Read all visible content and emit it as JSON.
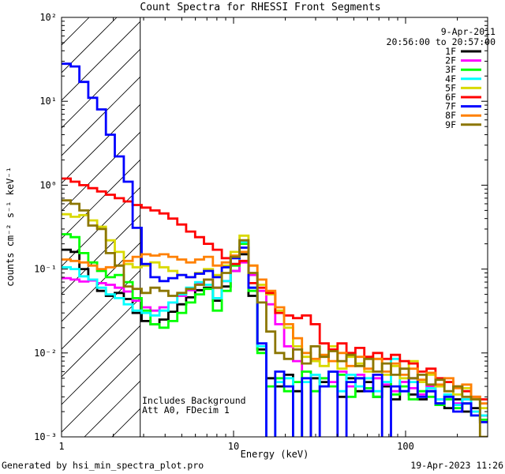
{
  "header": {
    "title": "Count Spectra for RHESSI Front Segments"
  },
  "annotations": {
    "date": "9-Apr-2011",
    "time_range": "20:56:00 to 20:57:00",
    "note_line1": "Includes Background",
    "note_line2": "Att A0, FDecim 1"
  },
  "footer": {
    "left": "Generated by hsi_min_spectra_plot.pro",
    "right": "19-Apr-2023 11:26"
  },
  "chart_data": {
    "type": "line",
    "title": "Count Spectra for RHESSI Front Segments",
    "xlabel": "Energy (keV)",
    "ylabel": "counts cm⁻² s⁻¹ keV⁻¹",
    "x_scale": "log",
    "y_scale": "log",
    "xlim": [
      1,
      300
    ],
    "ylim": [
      0.001,
      100
    ],
    "grid": false,
    "legend_position": "top-right",
    "hatched_region_kev": [
      1,
      2.85
    ],
    "x_ticks": [
      {
        "v": 1,
        "label": "1"
      },
      {
        "v": 10,
        "label": "10"
      },
      {
        "v": 100,
        "label": "100"
      }
    ],
    "y_ticks": [
      {
        "v": 100,
        "label": "10²"
      },
      {
        "v": 10,
        "label": "10¹"
      },
      {
        "v": 1,
        "label": "10⁰"
      },
      {
        "v": 0.1,
        "label": "10⁻¹"
      },
      {
        "v": 0.01,
        "label": "10⁻²"
      },
      {
        "v": 0.001,
        "label": "10⁻³"
      }
    ],
    "energy_edges_kev": [
      1.0,
      1.13,
      1.27,
      1.43,
      1.61,
      1.81,
      2.04,
      2.3,
      2.59,
      2.92,
      3.29,
      3.71,
      4.18,
      4.71,
      5.3,
      5.98,
      6.73,
      7.58,
      8.54,
      9.62,
      10.84,
      12.21,
      13.76,
      15.5,
      17.47,
      19.68,
      22.17,
      24.98,
      28.14,
      31.7,
      35.72,
      40.24,
      45.33,
      51.07,
      57.54,
      64.82,
      73.02,
      82.26,
      92.67,
      104.4,
      117.6,
      132.5,
      149.3,
      168.2,
      189.5,
      213.5,
      240.5,
      270.9,
      300.0
    ],
    "series": [
      {
        "name": "1F",
        "color": "#000000",
        "values": [
          0.17,
          0.16,
          0.1,
          0.075,
          0.055,
          0.048,
          0.052,
          0.044,
          0.03,
          0.024,
          0.022,
          0.025,
          0.031,
          0.038,
          0.046,
          0.056,
          0.06,
          0.042,
          0.062,
          0.095,
          0.15,
          0.048,
          0.011,
          0.005,
          0.004,
          0.0055,
          0.0035,
          0.0008,
          0.005,
          0.0045,
          0.006,
          0.003,
          0.005,
          0.0035,
          0.0045,
          0.003,
          0.004,
          0.0028,
          0.0045,
          0.0032,
          0.0028,
          0.0035,
          0.0025,
          0.0022,
          0.0028,
          0.002,
          0.0022,
          0.0018
        ]
      },
      {
        "name": "2F",
        "color": "#FF00FF",
        "values": [
          0.078,
          0.075,
          0.071,
          0.073,
          0.068,
          0.065,
          0.06,
          0.054,
          0.042,
          0.035,
          0.032,
          0.035,
          0.04,
          0.048,
          0.056,
          0.066,
          0.075,
          0.06,
          0.072,
          0.095,
          0.12,
          0.085,
          0.055,
          0.038,
          0.022,
          0.012,
          0.008,
          0.006,
          0.0055,
          0.005,
          0.0045,
          0.006,
          0.004,
          0.0055,
          0.0038,
          0.005,
          0.0042,
          0.0035,
          0.0045,
          0.0038,
          0.0032,
          0.004,
          0.0028,
          0.0032,
          0.0025,
          0.0028,
          0.002,
          0.0018
        ]
      },
      {
        "name": "3F",
        "color": "#00FF00",
        "values": [
          0.26,
          0.24,
          0.155,
          0.12,
          0.095,
          0.08,
          0.085,
          0.07,
          0.045,
          0.032,
          0.022,
          0.02,
          0.024,
          0.03,
          0.04,
          0.05,
          0.058,
          0.032,
          0.055,
          0.11,
          0.2,
          0.055,
          0.01,
          0.004,
          0.005,
          0.0035,
          0.0045,
          0.006,
          0.0035,
          0.005,
          0.004,
          0.0055,
          0.003,
          0.005,
          0.0038,
          0.003,
          0.0045,
          0.0032,
          0.004,
          0.0028,
          0.0035,
          0.003,
          0.0024,
          0.0028,
          0.0022,
          0.0025,
          0.0018,
          0.0016
        ]
      },
      {
        "name": "4F",
        "color": "#00FFFF",
        "values": [
          0.105,
          0.1,
          0.082,
          0.075,
          0.06,
          0.05,
          0.045,
          0.038,
          0.032,
          0.03,
          0.028,
          0.032,
          0.04,
          0.05,
          0.06,
          0.07,
          0.065,
          0.045,
          0.072,
          0.115,
          0.21,
          0.06,
          0.012,
          0.0009,
          0.0045,
          0.005,
          0.0008,
          0.0045,
          0.0055,
          0.004,
          0.006,
          0.0035,
          0.0055,
          0.004,
          0.005,
          0.0035,
          0.0045,
          0.0085,
          0.0035,
          0.0045,
          0.003,
          0.0038,
          0.0028,
          0.0032,
          0.0024,
          0.0028,
          0.002,
          0.0018
        ]
      },
      {
        "name": "5F",
        "color": "#D9D900",
        "values": [
          0.45,
          0.42,
          0.44,
          0.38,
          0.32,
          0.22,
          0.16,
          0.115,
          0.105,
          0.11,
          0.12,
          0.105,
          0.095,
          0.085,
          0.08,
          0.09,
          0.1,
          0.085,
          0.11,
          0.16,
          0.25,
          0.11,
          0.065,
          0.05,
          0.032,
          0.02,
          0.012,
          0.009,
          0.008,
          0.007,
          0.012,
          0.0065,
          0.009,
          0.0075,
          0.006,
          0.0085,
          0.0055,
          0.007,
          0.005,
          0.008,
          0.0045,
          0.0055,
          0.004,
          0.0045,
          0.0032,
          0.0038,
          0.0028,
          0.0022
        ]
      },
      {
        "name": "6F",
        "color": "#FF0000",
        "values": [
          1.2,
          1.1,
          1.0,
          0.92,
          0.84,
          0.77,
          0.7,
          0.64,
          0.58,
          0.54,
          0.5,
          0.46,
          0.4,
          0.34,
          0.28,
          0.24,
          0.2,
          0.17,
          0.135,
          0.115,
          0.125,
          0.068,
          0.06,
          0.052,
          0.03,
          0.028,
          0.026,
          0.028,
          0.022,
          0.013,
          0.011,
          0.013,
          0.01,
          0.0115,
          0.009,
          0.01,
          0.0085,
          0.0095,
          0.008,
          0.0075,
          0.006,
          0.0065,
          0.005,
          0.0045,
          0.004,
          0.0035,
          0.003,
          0.0028
        ]
      },
      {
        "name": "7F",
        "color": "#0000FF",
        "values": [
          28,
          26,
          17,
          11,
          8.0,
          4.0,
          2.2,
          1.1,
          0.31,
          0.115,
          0.08,
          0.072,
          0.078,
          0.085,
          0.08,
          0.088,
          0.095,
          0.08,
          0.105,
          0.135,
          0.18,
          0.06,
          0.013,
          0.0008,
          0.006,
          0.004,
          0.0009,
          0.005,
          0.0008,
          0.004,
          0.006,
          0.0007,
          0.0045,
          0.005,
          0.0035,
          0.0055,
          0.0008,
          0.004,
          0.0035,
          0.005,
          0.003,
          0.0035,
          0.0025,
          0.003,
          0.002,
          0.0025,
          0.0018,
          0.0015
        ]
      },
      {
        "name": "8F",
        "color": "#FF8000",
        "values": [
          0.13,
          0.125,
          0.12,
          0.11,
          0.1,
          0.105,
          0.11,
          0.125,
          0.14,
          0.15,
          0.145,
          0.15,
          0.14,
          0.13,
          0.12,
          0.13,
          0.14,
          0.11,
          0.12,
          0.145,
          0.16,
          0.11,
          0.075,
          0.055,
          0.035,
          0.022,
          0.015,
          0.01,
          0.0085,
          0.0095,
          0.008,
          0.01,
          0.007,
          0.009,
          0.0065,
          0.0085,
          0.006,
          0.0075,
          0.0055,
          0.0065,
          0.0048,
          0.0058,
          0.0042,
          0.005,
          0.0038,
          0.0042,
          0.003,
          0.0025
        ]
      },
      {
        "name": "9F",
        "color": "#8C7600",
        "values": [
          0.66,
          0.6,
          0.5,
          0.33,
          0.3,
          0.155,
          0.11,
          0.062,
          0.058,
          0.052,
          0.06,
          0.055,
          0.048,
          0.052,
          0.058,
          0.065,
          0.075,
          0.06,
          0.09,
          0.14,
          0.22,
          0.09,
          0.04,
          0.018,
          0.01,
          0.0085,
          0.011,
          0.0075,
          0.012,
          0.009,
          0.0105,
          0.008,
          0.0095,
          0.007,
          0.0085,
          0.006,
          0.0075,
          0.0055,
          0.0065,
          0.005,
          0.0055,
          0.0042,
          0.0048,
          0.0035,
          0.004,
          0.003,
          0.0028,
          0.001
        ]
      }
    ]
  }
}
